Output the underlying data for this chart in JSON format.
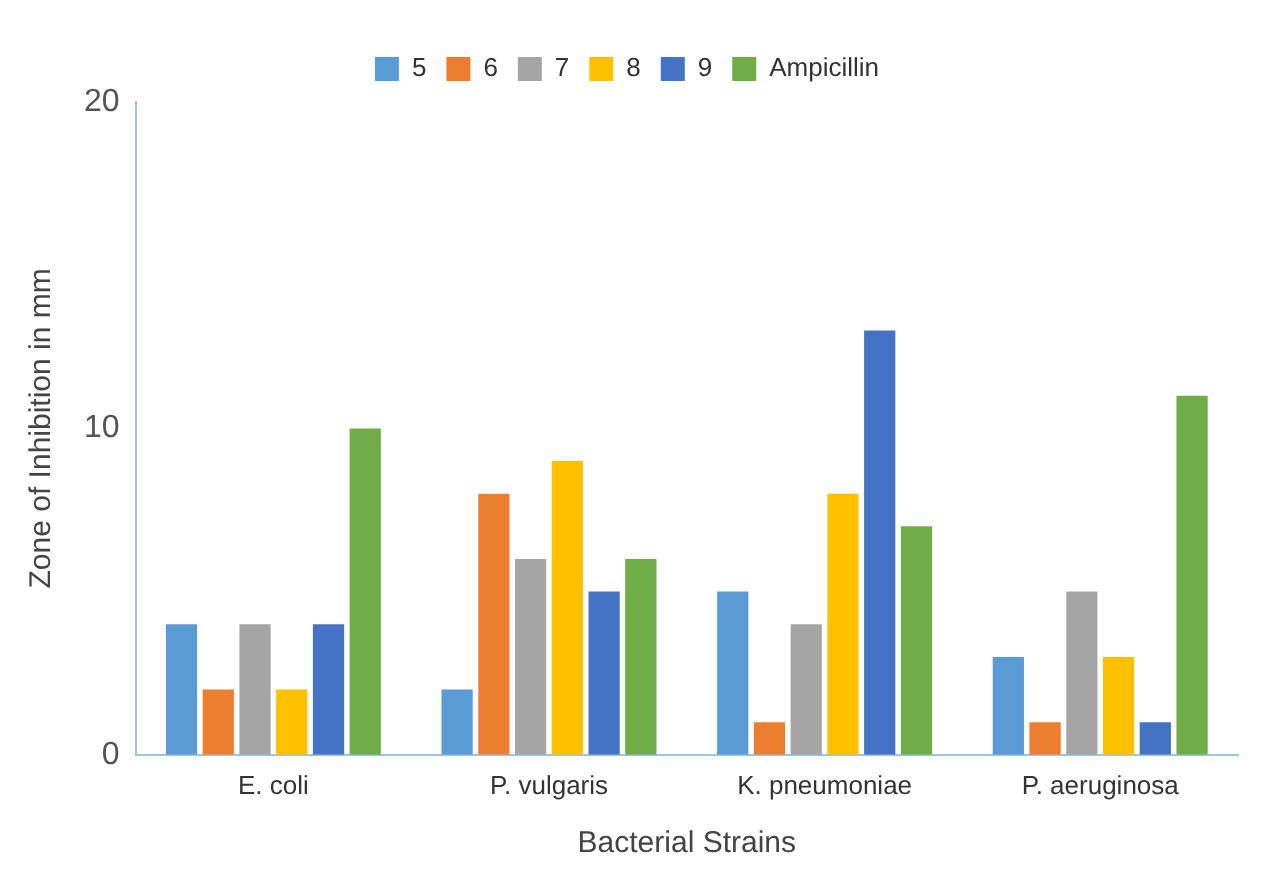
{
  "chart_data": {
    "type": "bar",
    "xlabel": "Bacterial Strains",
    "ylabel": "Zone of Inhibition in mm",
    "categories": [
      "E. coli",
      "P. vulgaris",
      "K. pneumoniae",
      "P. aeruginosa"
    ],
    "series": [
      {
        "name": "5",
        "color": "#5b9bd5",
        "values": [
          4,
          2,
          5,
          3
        ]
      },
      {
        "name": "6",
        "color": "#ed7d31",
        "values": [
          2,
          8,
          1,
          1
        ]
      },
      {
        "name": "7",
        "color": "#a5a5a5",
        "values": [
          4,
          6,
          4,
          5
        ]
      },
      {
        "name": "8",
        "color": "#ffc000",
        "values": [
          2,
          9,
          8,
          3
        ]
      },
      {
        "name": "9",
        "color": "#4472c4",
        "values": [
          4,
          5,
          13,
          1
        ]
      },
      {
        "name": "Ampicillin",
        "color": "#70ad47",
        "values": [
          10,
          6,
          7,
          11
        ]
      }
    ],
    "ylim": [
      0,
      20
    ],
    "yticks": [
      0,
      10,
      20
    ],
    "grid": false,
    "legend": "top"
  }
}
